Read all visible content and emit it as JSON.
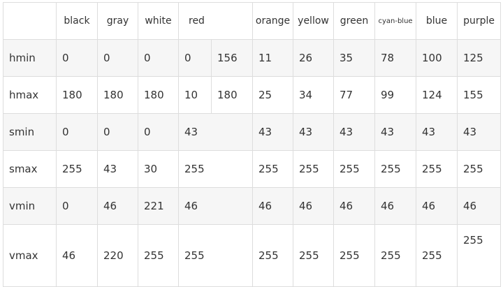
{
  "table": {
    "headers": {
      "black": "black",
      "gray": "gray",
      "white": "white",
      "red": "red",
      "orange": "orange",
      "yellow": "yellow",
      "green": "green",
      "cyan_blue": "cyan-blue",
      "blue": "blue",
      "purple": "purple"
    },
    "rows": {
      "hmin": {
        "label": "hmin",
        "black": "0",
        "gray": "0",
        "white": "0",
        "red_a": "0",
        "red_b": "156",
        "orange": "11",
        "yellow": "26",
        "green": "35",
        "cyan_blue": "78",
        "blue": "100",
        "purple": "125"
      },
      "hmax": {
        "label": "hmax",
        "black": "180",
        "gray": "180",
        "white": "180",
        "red_a": "10",
        "red_b": "180",
        "orange": "25",
        "yellow": "34",
        "green": "77",
        "cyan_blue": "99",
        "blue": "124",
        "purple": "155"
      },
      "smin": {
        "label": "smin",
        "black": "0",
        "gray": "0",
        "white": "0",
        "red": "43",
        "orange": "43",
        "yellow": "43",
        "green": "43",
        "cyan_blue": "43",
        "blue": "43",
        "purple": "43"
      },
      "smax": {
        "label": "smax",
        "black": "255",
        "gray": "43",
        "white": "30",
        "red": "255",
        "orange": "255",
        "yellow": "255",
        "green": "255",
        "cyan_blue": "255",
        "blue": "255",
        "purple": "255"
      },
      "vmin": {
        "label": "vmin",
        "black": "0",
        "gray": "46",
        "white": "221",
        "red": "46",
        "orange": "46",
        "yellow": "46",
        "green": "46",
        "cyan_blue": "46",
        "blue": "46",
        "purple": "46"
      },
      "vmax": {
        "label": "vmax",
        "black": "46",
        "gray": "220",
        "white": "255",
        "red": "255",
        "orange": "255",
        "yellow": "255",
        "green": "255",
        "cyan_blue": "255",
        "blue": "255",
        "purple": "255"
      }
    }
  }
}
